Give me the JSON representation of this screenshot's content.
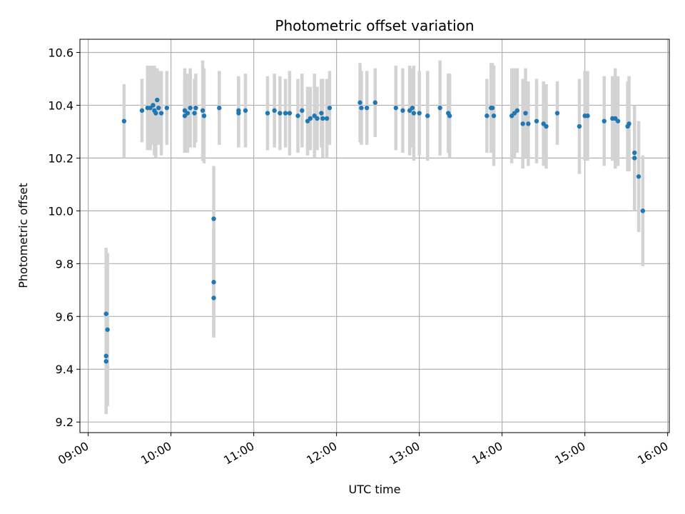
{
  "chart_data": {
    "type": "scatter",
    "title": "Photometric offset variation",
    "xlabel": "UTC time",
    "ylabel": "Photometric offset",
    "x_ticks": [
      "09:00",
      "10:00",
      "11:00",
      "12:00",
      "13:00",
      "14:00",
      "15:00",
      "16:00"
    ],
    "x_range_hours": [
      8.9,
      16.02
    ],
    "y_ticks": [
      9.2,
      9.4,
      9.6,
      9.8,
      10.0,
      10.2,
      10.4,
      10.6
    ],
    "ylim": [
      9.16,
      10.65
    ],
    "grid": true,
    "colors": {
      "point": "#1f77b4",
      "errorbar": "#d3d3d3",
      "grid": "#b0b0b0"
    },
    "points": [
      {
        "t": "09:13",
        "y": 9.61,
        "err": 0.25
      },
      {
        "t": "09:13",
        "y": 9.45,
        "err": 0.1
      },
      {
        "t": "09:13",
        "y": 9.43,
        "err": 0.2
      },
      {
        "t": "09:14",
        "y": 9.55,
        "err": 0.29
      },
      {
        "t": "09:26",
        "y": 10.34,
        "err": 0.14
      },
      {
        "t": "09:39",
        "y": 10.38,
        "err": 0.12
      },
      {
        "t": "09:43",
        "y": 10.39,
        "err": 0.16
      },
      {
        "t": "09:45",
        "y": 10.39,
        "err": 0.16
      },
      {
        "t": "09:47",
        "y": 10.4,
        "err": 0.15
      },
      {
        "t": "09:48",
        "y": 10.38,
        "err": 0.17
      },
      {
        "t": "09:49",
        "y": 10.37,
        "err": 0.17
      },
      {
        "t": "09:50",
        "y": 10.42,
        "err": 0.12
      },
      {
        "t": "09:51",
        "y": 10.39,
        "err": 0.14
      },
      {
        "t": "09:53",
        "y": 10.37,
        "err": 0.16
      },
      {
        "t": "09:57",
        "y": 10.39,
        "err": 0.14
      },
      {
        "t": "10:10",
        "y": 10.38,
        "err": 0.16
      },
      {
        "t": "10:10",
        "y": 10.36,
        "err": 0.14
      },
      {
        "t": "10:12",
        "y": 10.37,
        "err": 0.15
      },
      {
        "t": "10:14",
        "y": 10.39,
        "err": 0.15
      },
      {
        "t": "10:17",
        "y": 10.37,
        "err": 0.13
      },
      {
        "t": "10:18",
        "y": 10.39,
        "err": 0.13
      },
      {
        "t": "10:23",
        "y": 10.38,
        "err": 0.19
      },
      {
        "t": "10:24",
        "y": 10.36,
        "err": 0.18
      },
      {
        "t": "10:31",
        "y": 9.97,
        "err": 0.2
      },
      {
        "t": "10:31",
        "y": 9.73,
        "err": 0.2
      },
      {
        "t": "10:31",
        "y": 9.67,
        "err": 0.15
      },
      {
        "t": "10:35",
        "y": 10.39,
        "err": 0.14
      },
      {
        "t": "10:49",
        "y": 10.37,
        "err": 0.13
      },
      {
        "t": "10:49",
        "y": 10.38,
        "err": 0.13
      },
      {
        "t": "10:54",
        "y": 10.38,
        "err": 0.14
      },
      {
        "t": "11:10",
        "y": 10.37,
        "err": 0.14
      },
      {
        "t": "11:15",
        "y": 10.38,
        "err": 0.14
      },
      {
        "t": "11:19",
        "y": 10.37,
        "err": 0.14
      },
      {
        "t": "11:23",
        "y": 10.37,
        "err": 0.13
      },
      {
        "t": "11:26",
        "y": 10.37,
        "err": 0.16
      },
      {
        "t": "11:32",
        "y": 10.36,
        "err": 0.14
      },
      {
        "t": "11:35",
        "y": 10.38,
        "err": 0.14
      },
      {
        "t": "11:39",
        "y": 10.34,
        "err": 0.13
      },
      {
        "t": "11:41",
        "y": 10.35,
        "err": 0.12
      },
      {
        "t": "11:44",
        "y": 10.36,
        "err": 0.16
      },
      {
        "t": "11:46",
        "y": 10.35,
        "err": 0.12
      },
      {
        "t": "11:49",
        "y": 10.37,
        "err": 0.13
      },
      {
        "t": "11:50",
        "y": 10.35,
        "err": 0.15
      },
      {
        "t": "11:53",
        "y": 10.35,
        "err": 0.15
      },
      {
        "t": "11:55",
        "y": 10.39,
        "err": 0.14
      },
      {
        "t": "12:17",
        "y": 10.41,
        "err": 0.15
      },
      {
        "t": "12:18",
        "y": 10.39,
        "err": 0.14
      },
      {
        "t": "12:22",
        "y": 10.39,
        "err": 0.14
      },
      {
        "t": "12:28",
        "y": 10.41,
        "err": 0.13
      },
      {
        "t": "12:43",
        "y": 10.39,
        "err": 0.16
      },
      {
        "t": "12:48",
        "y": 10.38,
        "err": 0.16
      },
      {
        "t": "12:53",
        "y": 10.38,
        "err": 0.17
      },
      {
        "t": "12:55",
        "y": 10.39,
        "err": 0.15
      },
      {
        "t": "12:56",
        "y": 10.37,
        "err": 0.18
      },
      {
        "t": "13:00",
        "y": 10.37,
        "err": 0.16
      },
      {
        "t": "13:06",
        "y": 10.36,
        "err": 0.17
      },
      {
        "t": "13:15",
        "y": 10.39,
        "err": 0.18
      },
      {
        "t": "13:21",
        "y": 10.37,
        "err": 0.15
      },
      {
        "t": "13:22",
        "y": 10.36,
        "err": 0.16
      },
      {
        "t": "13:49",
        "y": 10.36,
        "err": 0.14
      },
      {
        "t": "13:52",
        "y": 10.39,
        "err": 0.17
      },
      {
        "t": "13:53",
        "y": 10.39,
        "err": 0.17
      },
      {
        "t": "13:54",
        "y": 10.36,
        "err": 0.19
      },
      {
        "t": "14:07",
        "y": 10.36,
        "err": 0.18
      },
      {
        "t": "14:09",
        "y": 10.37,
        "err": 0.17
      },
      {
        "t": "14:11",
        "y": 10.38,
        "err": 0.16
      },
      {
        "t": "14:15",
        "y": 10.33,
        "err": 0.17
      },
      {
        "t": "14:17",
        "y": 10.37,
        "err": 0.17
      },
      {
        "t": "14:19",
        "y": 10.33,
        "err": 0.16
      },
      {
        "t": "14:25",
        "y": 10.34,
        "err": 0.16
      },
      {
        "t": "14:30",
        "y": 10.33,
        "err": 0.16
      },
      {
        "t": "14:32",
        "y": 10.32,
        "err": 0.16
      },
      {
        "t": "14:40",
        "y": 10.37,
        "err": 0.12
      },
      {
        "t": "14:56",
        "y": 10.32,
        "err": 0.18
      },
      {
        "t": "15:00",
        "y": 10.36,
        "err": 0.17
      },
      {
        "t": "15:02",
        "y": 10.36,
        "err": 0.17
      },
      {
        "t": "15:14",
        "y": 10.34,
        "err": 0.17
      },
      {
        "t": "15:20",
        "y": 10.35,
        "err": 0.16
      },
      {
        "t": "15:22",
        "y": 10.35,
        "err": 0.19
      },
      {
        "t": "15:24",
        "y": 10.34,
        "err": 0.17
      },
      {
        "t": "15:31",
        "y": 10.32,
        "err": 0.17
      },
      {
        "t": "15:32",
        "y": 10.33,
        "err": 0.18
      },
      {
        "t": "15:36",
        "y": 10.22,
        "err": 0.12
      },
      {
        "t": "15:36",
        "y": 10.2,
        "err": 0.2
      },
      {
        "t": "15:39",
        "y": 10.13,
        "err": 0.21
      },
      {
        "t": "15:42",
        "y": 10.0,
        "err": 0.21
      }
    ]
  }
}
